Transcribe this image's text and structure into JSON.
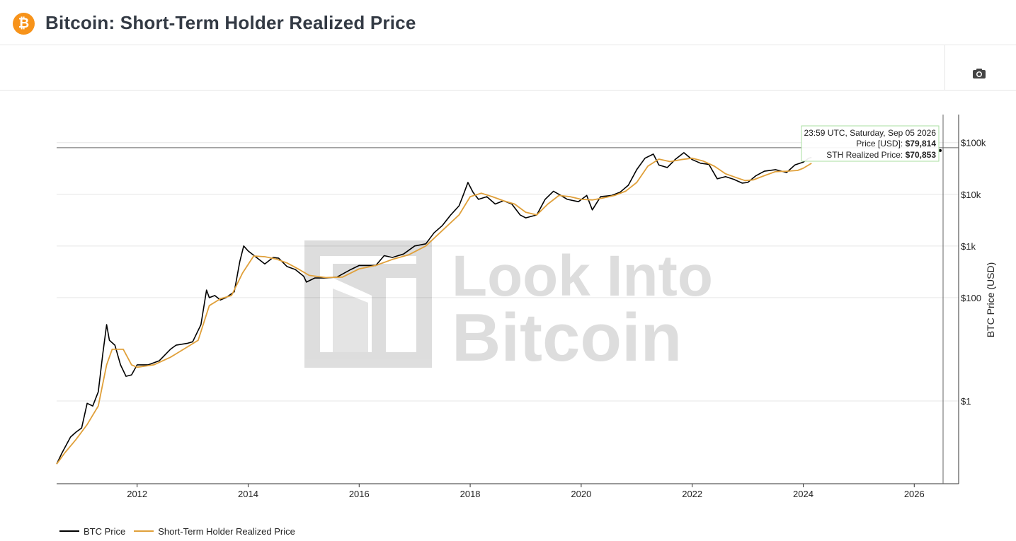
{
  "header": {
    "title": "Bitcoin: Short-Term Holder Realized Price",
    "logo_glyph": "₿"
  },
  "toolbar": {
    "camera_icon": "camera-icon"
  },
  "watermark": {
    "line1": "Look Into",
    "line2": "Bitcoin"
  },
  "tooltip": {
    "timestamp": "23:59 UTC, Saturday, Sep 05 2026",
    "price_label": "Price [USD]: ",
    "price_value": "$79,814",
    "sth_label": "STH Realized Price: ",
    "sth_value": "$70,853"
  },
  "colors": {
    "btc_price": "#000000",
    "sth_realized": "#e0a03a",
    "grid": "#e6e6e6",
    "tooltip_border": "#a9dfa0"
  },
  "chart_data": {
    "type": "line",
    "yscale": "log",
    "ylabel": "BTC Price (USD)",
    "xlabel": "",
    "xlim": [
      2010.55,
      2026.8
    ],
    "ylim": [
      0.025,
      350000
    ],
    "x_ticks": [
      2012,
      2014,
      2016,
      2018,
      2020,
      2022,
      2024,
      2026
    ],
    "x_tick_labels": [
      "2012",
      "2014",
      "2016",
      "2018",
      "2020",
      "2022",
      "2024",
      "2026"
    ],
    "y_ticks": [
      1,
      100,
      1000,
      10000,
      100000
    ],
    "y_tick_labels": [
      "$1",
      "$100",
      "$1k",
      "$10k",
      "$100k"
    ],
    "legend_position": "bottom-left",
    "series": [
      {
        "name": "BTC Price",
        "color": "#000000",
        "points": [
          [
            2010.55,
            0.06
          ],
          [
            2010.65,
            0.1
          ],
          [
            2010.8,
            0.2
          ],
          [
            2010.9,
            0.25
          ],
          [
            2011.0,
            0.3
          ],
          [
            2011.1,
            0.9
          ],
          [
            2011.2,
            0.8
          ],
          [
            2011.3,
            1.5
          ],
          [
            2011.38,
            8
          ],
          [
            2011.45,
            30
          ],
          [
            2011.5,
            15
          ],
          [
            2011.6,
            12
          ],
          [
            2011.7,
            5
          ],
          [
            2011.8,
            3
          ],
          [
            2011.9,
            3.2
          ],
          [
            2012.0,
            5
          ],
          [
            2012.2,
            5
          ],
          [
            2012.4,
            6
          ],
          [
            2012.6,
            10
          ],
          [
            2012.7,
            12
          ],
          [
            2012.9,
            13
          ],
          [
            2013.0,
            14
          ],
          [
            2013.15,
            30
          ],
          [
            2013.25,
            140
          ],
          [
            2013.3,
            100
          ],
          [
            2013.4,
            110
          ],
          [
            2013.5,
            90
          ],
          [
            2013.6,
            100
          ],
          [
            2013.75,
            130
          ],
          [
            2013.85,
            500
          ],
          [
            2013.92,
            1000
          ],
          [
            2014.0,
            800
          ],
          [
            2014.15,
            600
          ],
          [
            2014.3,
            450
          ],
          [
            2014.45,
            600
          ],
          [
            2014.55,
            580
          ],
          [
            2014.7,
            400
          ],
          [
            2014.85,
            350
          ],
          [
            2015.0,
            260
          ],
          [
            2015.05,
            200
          ],
          [
            2015.2,
            240
          ],
          [
            2015.4,
            240
          ],
          [
            2015.6,
            250
          ],
          [
            2015.85,
            350
          ],
          [
            2016.0,
            420
          ],
          [
            2016.3,
            420
          ],
          [
            2016.45,
            650
          ],
          [
            2016.6,
            600
          ],
          [
            2016.8,
            700
          ],
          [
            2017.0,
            1000
          ],
          [
            2017.2,
            1100
          ],
          [
            2017.35,
            1800
          ],
          [
            2017.5,
            2500
          ],
          [
            2017.65,
            4000
          ],
          [
            2017.8,
            6000
          ],
          [
            2017.88,
            10000
          ],
          [
            2017.96,
            17000
          ],
          [
            2018.05,
            11000
          ],
          [
            2018.15,
            8000
          ],
          [
            2018.3,
            9000
          ],
          [
            2018.45,
            6500
          ],
          [
            2018.6,
            7500
          ],
          [
            2018.75,
            6500
          ],
          [
            2018.9,
            4000
          ],
          [
            2019.0,
            3500
          ],
          [
            2019.2,
            4000
          ],
          [
            2019.35,
            8000
          ],
          [
            2019.5,
            11500
          ],
          [
            2019.6,
            10000
          ],
          [
            2019.75,
            8000
          ],
          [
            2019.95,
            7200
          ],
          [
            2020.1,
            9500
          ],
          [
            2020.2,
            5000
          ],
          [
            2020.35,
            9000
          ],
          [
            2020.55,
            9500
          ],
          [
            2020.7,
            11000
          ],
          [
            2020.85,
            15000
          ],
          [
            2021.0,
            30000
          ],
          [
            2021.15,
            50000
          ],
          [
            2021.3,
            60000
          ],
          [
            2021.4,
            37000
          ],
          [
            2021.55,
            33000
          ],
          [
            2021.7,
            48000
          ],
          [
            2021.85,
            64000
          ],
          [
            2022.0,
            47000
          ],
          [
            2022.15,
            40000
          ],
          [
            2022.3,
            38000
          ],
          [
            2022.45,
            20000
          ],
          [
            2022.6,
            22000
          ],
          [
            2022.75,
            19500
          ],
          [
            2022.9,
            16500
          ],
          [
            2023.0,
            17000
          ],
          [
            2023.15,
            23000
          ],
          [
            2023.3,
            28000
          ],
          [
            2023.5,
            30000
          ],
          [
            2023.7,
            26500
          ],
          [
            2023.85,
            37000
          ],
          [
            2024.0,
            42000
          ],
          [
            2024.1,
            50000
          ],
          [
            2024.15,
            52000
          ]
        ]
      },
      {
        "name": "Short-Term Holder Realized Price",
        "color": "#e0a03a",
        "points": [
          [
            2010.55,
            0.06
          ],
          [
            2010.7,
            0.1
          ],
          [
            2010.9,
            0.18
          ],
          [
            2011.1,
            0.35
          ],
          [
            2011.3,
            0.8
          ],
          [
            2011.45,
            5
          ],
          [
            2011.55,
            10
          ],
          [
            2011.75,
            10
          ],
          [
            2011.9,
            5
          ],
          [
            2012.0,
            4.5
          ],
          [
            2012.3,
            5
          ],
          [
            2012.6,
            7
          ],
          [
            2012.9,
            11
          ],
          [
            2013.1,
            15
          ],
          [
            2013.3,
            70
          ],
          [
            2013.5,
            95
          ],
          [
            2013.7,
            110
          ],
          [
            2013.9,
            300
          ],
          [
            2014.1,
            640
          ],
          [
            2014.3,
            620
          ],
          [
            2014.5,
            560
          ],
          [
            2014.7,
            470
          ],
          [
            2014.9,
            360
          ],
          [
            2015.1,
            270
          ],
          [
            2015.4,
            245
          ],
          [
            2015.7,
            250
          ],
          [
            2016.0,
            360
          ],
          [
            2016.3,
            420
          ],
          [
            2016.6,
            550
          ],
          [
            2016.9,
            680
          ],
          [
            2017.2,
            1000
          ],
          [
            2017.5,
            2000
          ],
          [
            2017.8,
            4000
          ],
          [
            2018.0,
            9000
          ],
          [
            2018.2,
            10500
          ],
          [
            2018.4,
            9000
          ],
          [
            2018.6,
            7500
          ],
          [
            2018.8,
            6500
          ],
          [
            2019.0,
            4500
          ],
          [
            2019.2,
            4000
          ],
          [
            2019.4,
            6500
          ],
          [
            2019.6,
            9500
          ],
          [
            2019.8,
            9000
          ],
          [
            2020.0,
            8000
          ],
          [
            2020.2,
            7800
          ],
          [
            2020.4,
            8500
          ],
          [
            2020.6,
            9500
          ],
          [
            2020.8,
            11500
          ],
          [
            2021.0,
            17000
          ],
          [
            2021.2,
            35000
          ],
          [
            2021.4,
            48000
          ],
          [
            2021.6,
            43000
          ],
          [
            2021.8,
            47000
          ],
          [
            2022.0,
            50000
          ],
          [
            2022.2,
            44000
          ],
          [
            2022.4,
            35000
          ],
          [
            2022.6,
            25000
          ],
          [
            2022.8,
            21000
          ],
          [
            2022.95,
            18500
          ],
          [
            2023.1,
            19000
          ],
          [
            2023.3,
            23000
          ],
          [
            2023.5,
            27500
          ],
          [
            2023.7,
            28000
          ],
          [
            2023.9,
            29000
          ],
          [
            2024.0,
            32000
          ],
          [
            2024.15,
            40000
          ]
        ]
      }
    ]
  },
  "legend": {
    "items": [
      {
        "label": "BTC Price",
        "color": "#000000"
      },
      {
        "label": "Short-Term Holder Realized Price",
        "color": "#e0a03a"
      }
    ]
  }
}
